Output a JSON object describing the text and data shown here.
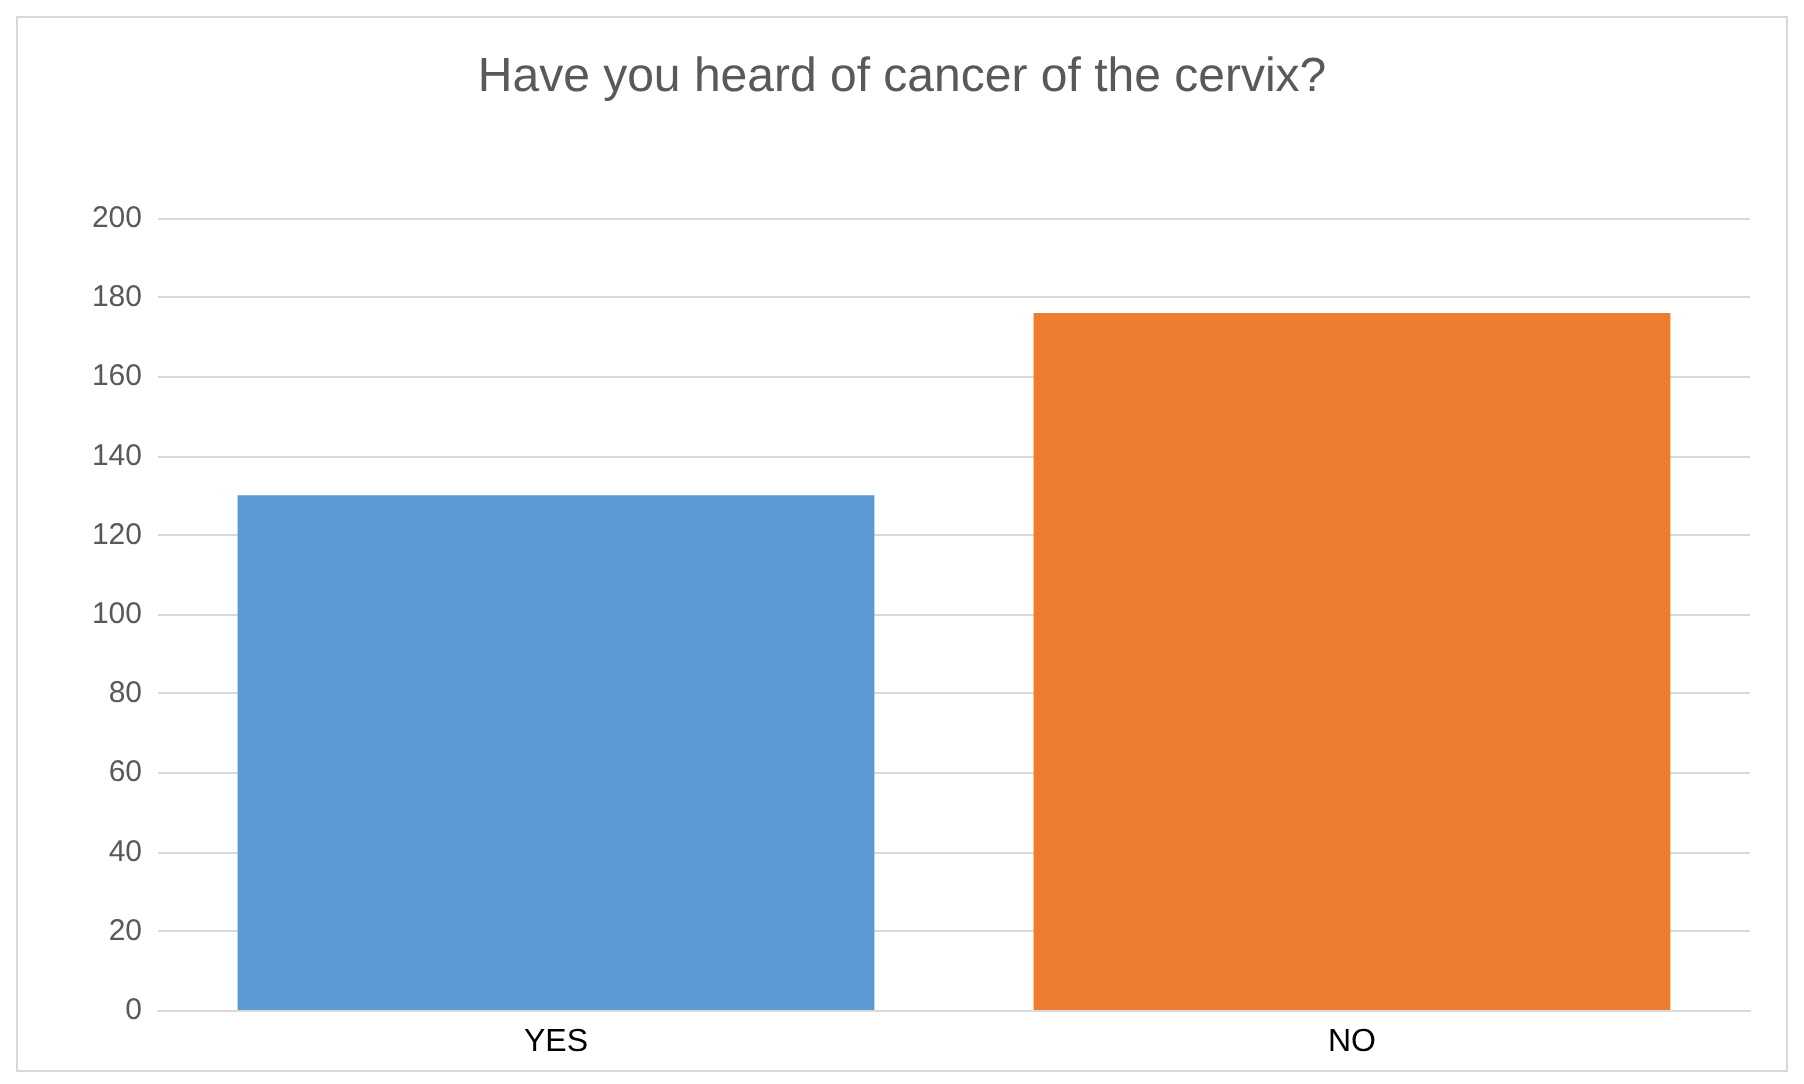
{
  "chart_data": {
    "type": "bar",
    "title": "Have you heard of cancer of the cervix?",
    "categories": [
      "YES",
      "NO"
    ],
    "values": [
      130,
      176
    ],
    "colors": [
      "#5b9bd5",
      "#ed7d31"
    ],
    "ylim": [
      0,
      200
    ],
    "yticks": [
      0,
      20,
      40,
      60,
      80,
      100,
      120,
      140,
      160,
      180,
      200
    ],
    "grid": "y"
  }
}
